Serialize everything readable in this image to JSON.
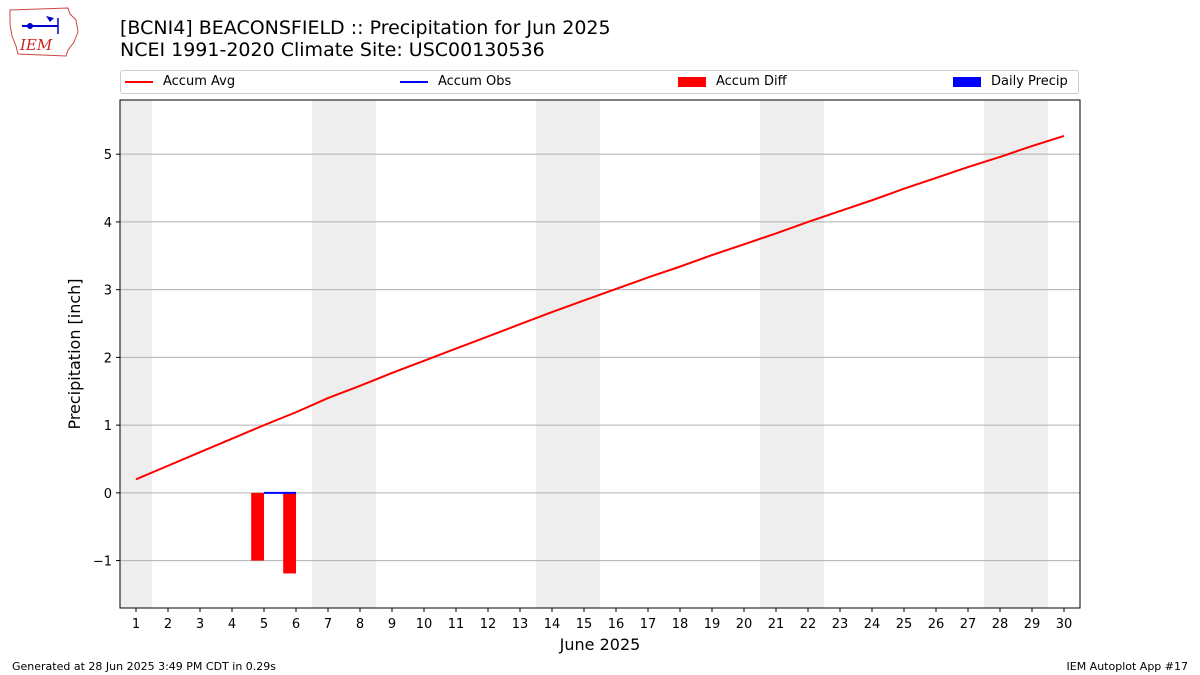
{
  "header": {
    "title_line1": "[BCNI4] BEACONSFIELD :: Precipitation for Jun 2025",
    "title_line2": "NCEI 1991-2020 Climate Site: USC00130536",
    "logo_text": "IEM"
  },
  "legend": {
    "items": [
      {
        "label": "Accum Avg",
        "color": "#ff0000",
        "kind": "line"
      },
      {
        "label": "Accum Obs",
        "color": "#0000ff",
        "kind": "line"
      },
      {
        "label": "Accum Diff",
        "color": "#ff0000",
        "kind": "patch"
      },
      {
        "label": "Daily Precip",
        "color": "#0000ff",
        "kind": "patch"
      }
    ]
  },
  "chart_data": {
    "type": "line",
    "xlabel": "June 2025",
    "ylabel": "Precipitation [inch]",
    "xlim": [
      0.5,
      30.5
    ],
    "ylim": [
      -1.7,
      5.8
    ],
    "yticks": [
      -1,
      0,
      1,
      2,
      3,
      4,
      5
    ],
    "xticks": [
      1,
      2,
      3,
      4,
      5,
      6,
      7,
      8,
      9,
      10,
      11,
      12,
      13,
      14,
      15,
      16,
      17,
      18,
      19,
      20,
      21,
      22,
      23,
      24,
      25,
      26,
      27,
      28,
      29,
      30
    ],
    "grid": "y",
    "weekend_shading": [
      [
        0.5,
        1.5
      ],
      [
        6.5,
        8.5
      ],
      [
        13.5,
        15.5
      ],
      [
        20.5,
        22.5
      ],
      [
        27.5,
        29.5
      ]
    ],
    "weekend_color": "#eeeeee",
    "series": [
      {
        "name": "Accum Avg",
        "type": "line",
        "color": "#ff0000",
        "x": [
          1,
          2,
          3,
          4,
          5,
          6,
          7,
          8,
          9,
          10,
          11,
          12,
          13,
          14,
          15,
          16,
          17,
          18,
          19,
          20,
          21,
          22,
          23,
          24,
          25,
          26,
          27,
          28,
          29,
          30
        ],
        "values": [
          0.2,
          0.4,
          0.6,
          0.8,
          1.0,
          1.19,
          1.4,
          1.58,
          1.77,
          1.95,
          2.13,
          2.31,
          2.49,
          2.67,
          2.84,
          3.01,
          3.18,
          3.34,
          3.51,
          3.67,
          3.83,
          4.0,
          4.16,
          4.32,
          4.49,
          4.65,
          4.81,
          4.96,
          5.12,
          5.27
        ]
      },
      {
        "name": "Accum Obs",
        "type": "line",
        "color": "#0000ff",
        "x": [
          5,
          6
        ],
        "values": [
          0.0,
          0.0
        ]
      },
      {
        "name": "Accum Diff",
        "type": "bar",
        "color": "#ff0000",
        "x": [
          5,
          6
        ],
        "values": [
          -1.0,
          -1.19
        ]
      },
      {
        "name": "Daily Precip",
        "type": "bar",
        "color": "#0000ff",
        "x": [],
        "values": []
      }
    ]
  },
  "footer": {
    "left": "Generated at 28 Jun 2025 3:49 PM CDT in 0.29s",
    "right": "IEM Autoplot App #17"
  }
}
